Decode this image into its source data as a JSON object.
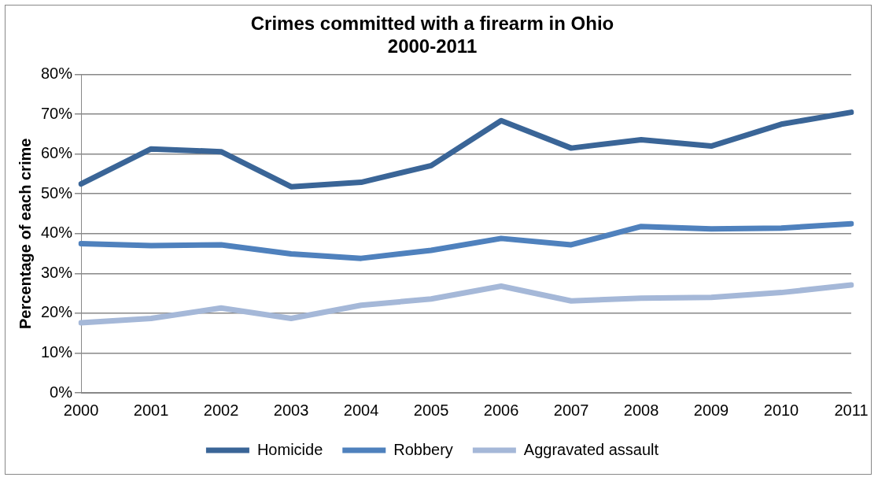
{
  "chart_data": {
    "type": "line",
    "title": "Crimes committed with a firearm in Ohio\n2000-2011",
    "ylabel": "Percentage of each crime",
    "categories": [
      "2000",
      "2001",
      "2002",
      "2003",
      "2004",
      "2005",
      "2006",
      "2007",
      "2008",
      "2009",
      "2010",
      "2011"
    ],
    "series": [
      {
        "name": "Homicide",
        "color": "#3a6597",
        "values": [
          52.5,
          61.3,
          60.6,
          51.8,
          52.9,
          57.1,
          68.4,
          61.5,
          63.6,
          62.0,
          67.5,
          70.5
        ]
      },
      {
        "name": "Robbery",
        "color": "#4f81bd",
        "values": [
          37.5,
          37.0,
          37.2,
          34.9,
          33.8,
          35.8,
          38.8,
          37.2,
          41.8,
          41.2,
          41.4,
          42.5
        ]
      },
      {
        "name": "Aggravated assault",
        "color": "#a5b8d8",
        "values": [
          17.6,
          18.7,
          21.3,
          18.7,
          22.0,
          23.6,
          26.8,
          23.1,
          23.8,
          24.0,
          25.2,
          27.1
        ]
      }
    ],
    "ylim": [
      0,
      80
    ],
    "yticks": [
      {
        "value": 0,
        "label": "0%"
      },
      {
        "value": 10,
        "label": "10%"
      },
      {
        "value": 20,
        "label": "20%"
      },
      {
        "value": 30,
        "label": "30%"
      },
      {
        "value": 40,
        "label": "40%"
      },
      {
        "value": 50,
        "label": "50%"
      },
      {
        "value": 60,
        "label": "60%"
      },
      {
        "value": 70,
        "label": "70%"
      },
      {
        "value": 80,
        "label": "80%"
      }
    ],
    "grid": "y",
    "legend": "bottom",
    "marker": "none",
    "line_style": "solid"
  }
}
